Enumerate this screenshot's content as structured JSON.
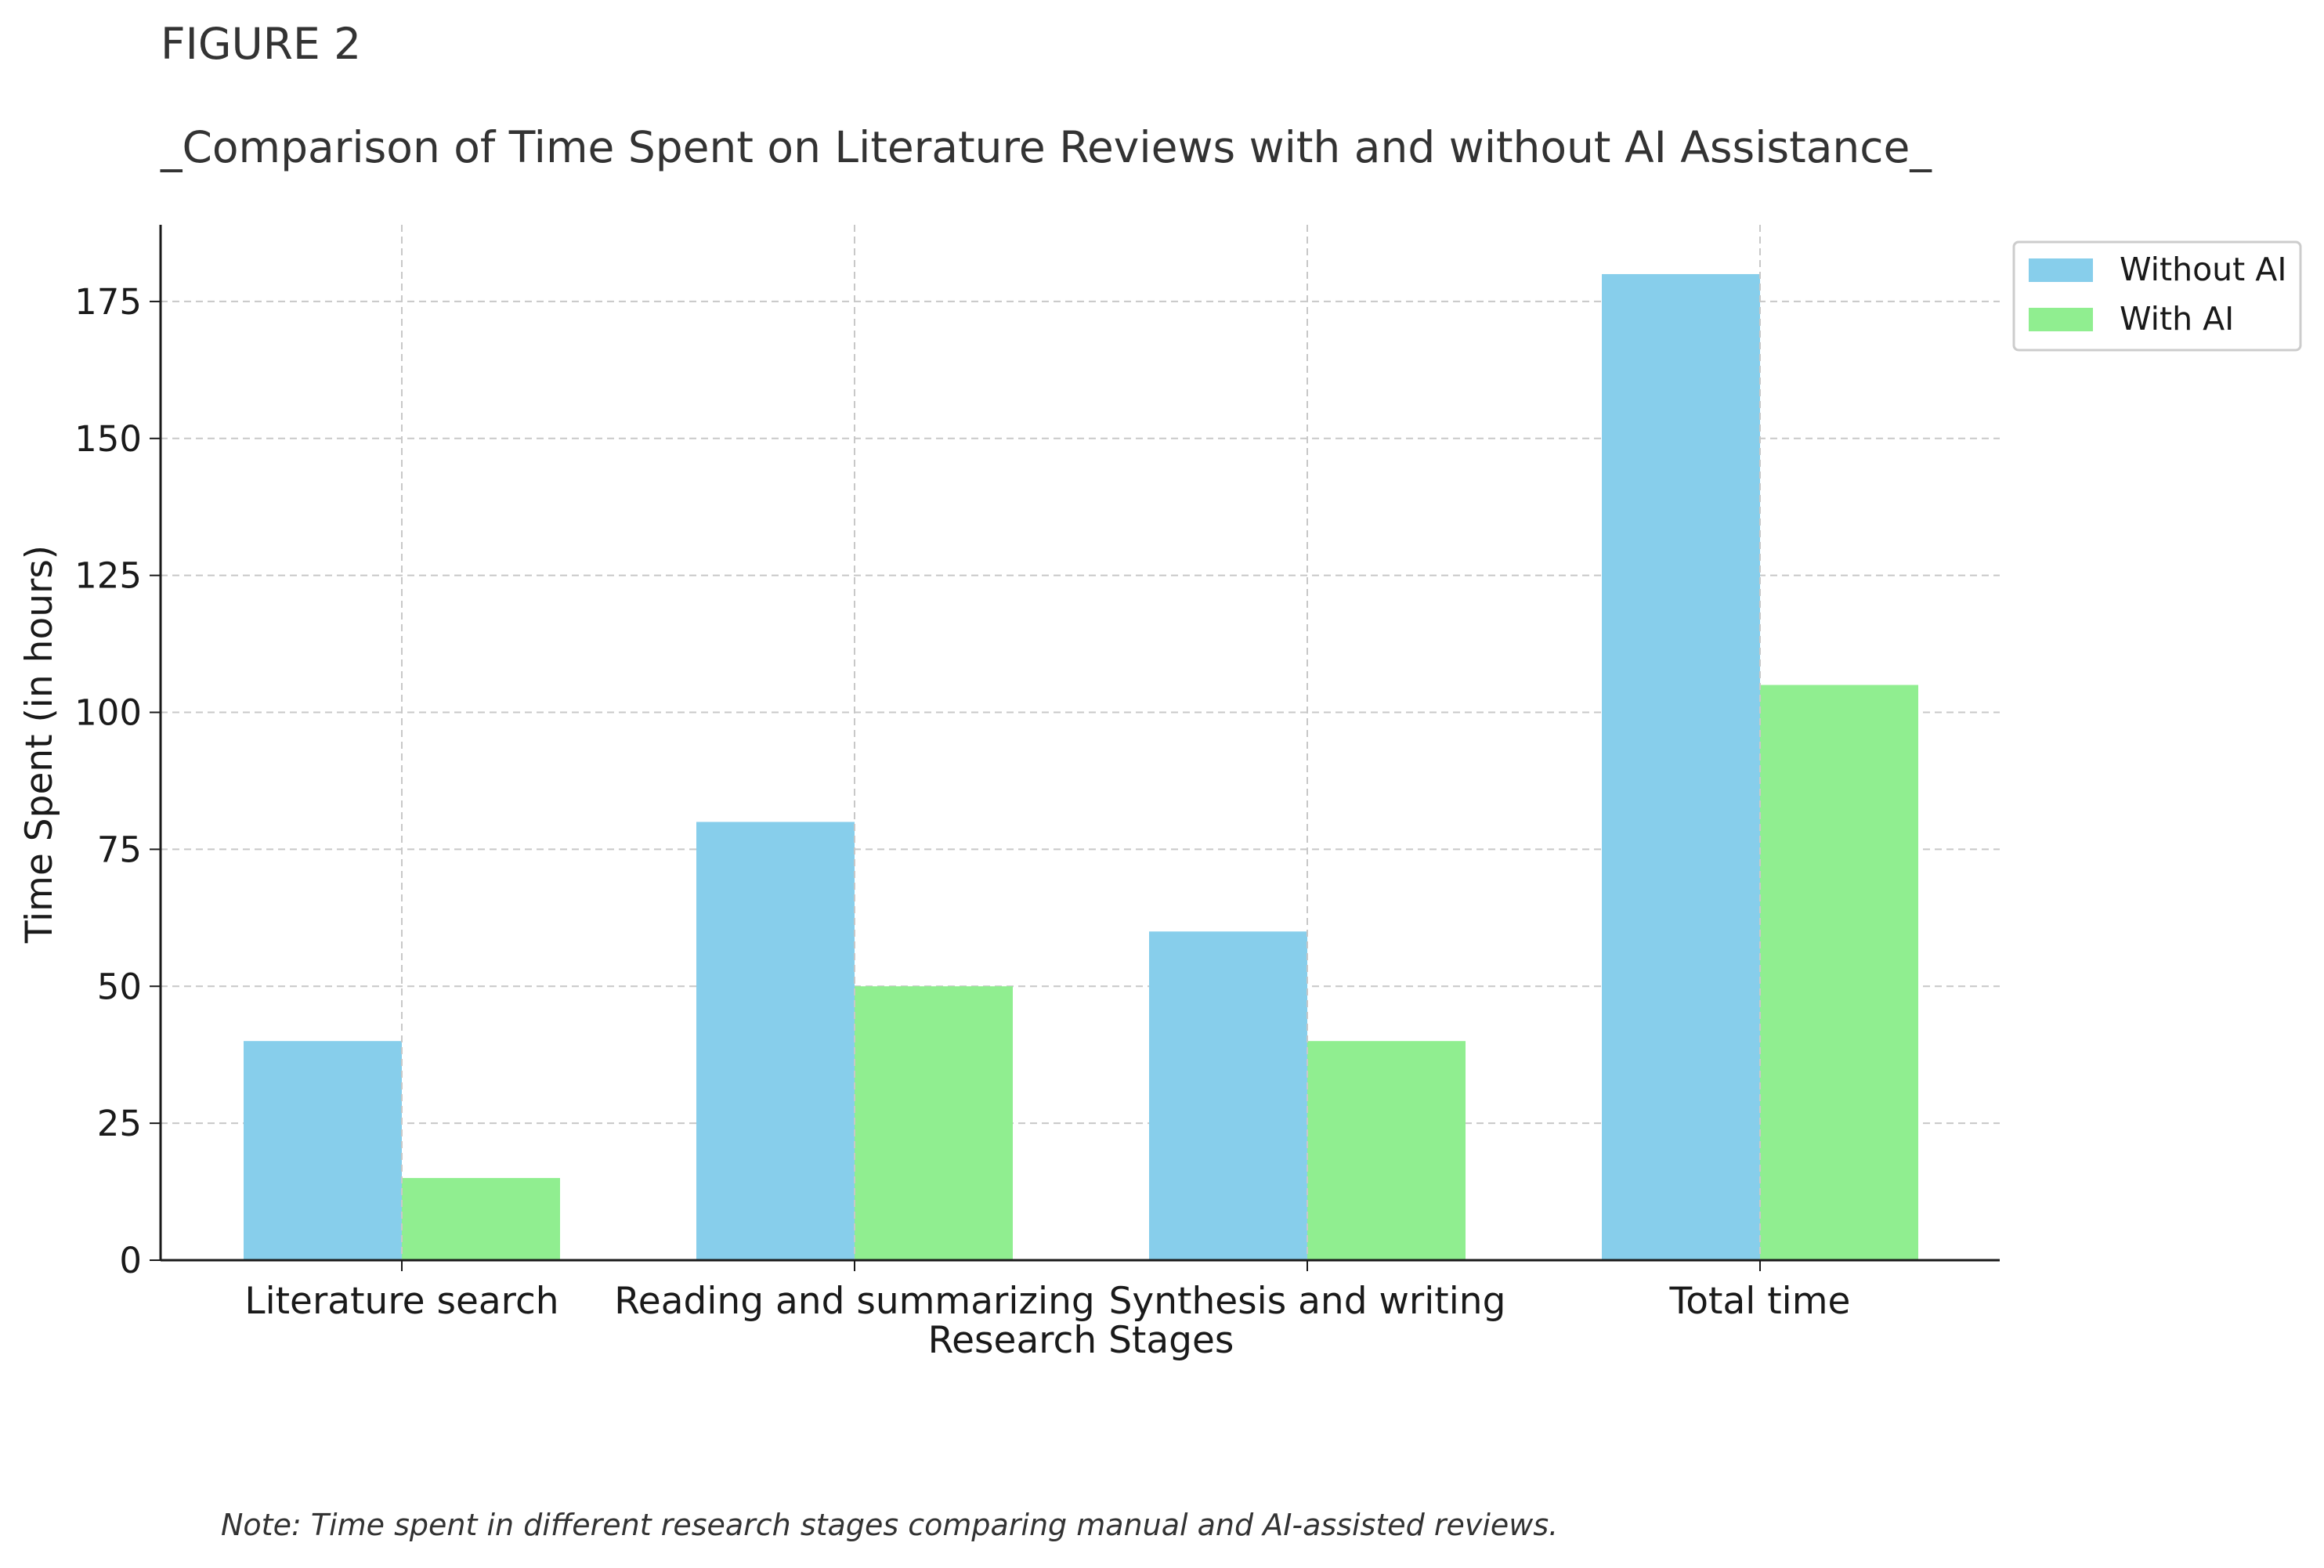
{
  "figure_label": "FIGURE 2",
  "note": "Note: Time spent in different research stages comparing manual and AI-assisted reviews.",
  "chart_data": {
    "type": "bar",
    "title": "_Comparison of Time Spent on Literature Reviews with and without AI Assistance_",
    "xlabel": "Research Stages",
    "ylabel": "Time Spent (in hours)",
    "categories": [
      "Literature search",
      "Reading and summarizing",
      "Synthesis and writing",
      "Total time"
    ],
    "series": [
      {
        "name": "Without AI",
        "values": [
          40,
          80,
          60,
          180
        ],
        "color": "#87CEEB"
      },
      {
        "name": "With AI",
        "values": [
          15,
          50,
          40,
          105
        ],
        "color": "#90EE90"
      }
    ],
    "ylim": [
      0,
      189
    ],
    "yticks": [
      0,
      25,
      50,
      75,
      100,
      125,
      150,
      175
    ],
    "grid": true,
    "legend_position": "upper-right-outside"
  }
}
